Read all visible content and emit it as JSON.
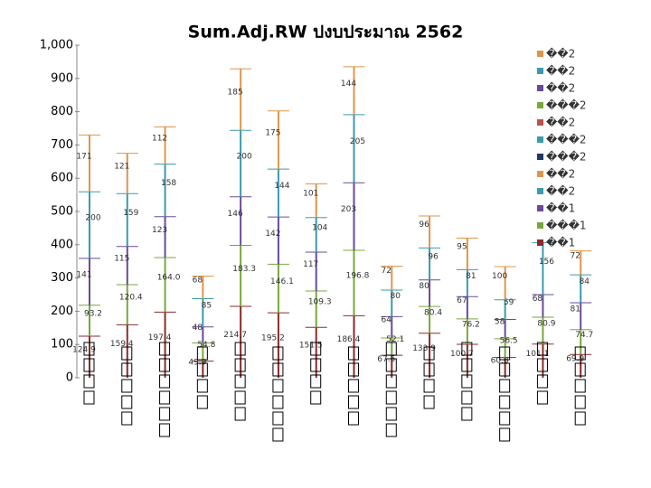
{
  "chart_data": {
    "type": "stacked-lines",
    "title": "Sum.Adj.RW ปงบประมาณ 2562",
    "categories": [
      null,
      null,
      null,
      null,
      null,
      null,
      null,
      null,
      null,
      null,
      null,
      null,
      null,
      null
    ],
    "ylim": [
      0,
      1000
    ],
    "yticks": [
      0,
      100,
      200,
      300,
      400,
      500,
      600,
      700,
      800,
      900,
      {
        "value": 1000,
        "label": "1,000"
      }
    ],
    "series": [
      {
        "color": "#8b2a2a",
        "values": [
          124.9,
          159.4,
          197.4,
          49.9,
          214.7,
          195.2,
          151.5,
          186.4,
          67.5,
          133.9,
          100.7,
          60.8,
          101.1,
          69.9
        ]
      },
      {
        "color": "#77a83a",
        "values": [
          93.2,
          120.4,
          164.0,
          54.8,
          183.3,
          146.1,
          109.3,
          196.8,
          52.1,
          80.4,
          76.2,
          56.5,
          80.9,
          74.7
        ],
        "value_labels": [
          "93.2",
          "120.4",
          "164.0",
          "54.8",
          "183.3",
          "146.1",
          "109.3",
          "196.8",
          "52.1",
          "80.4",
          "76.2",
          "56.5",
          "80.9",
          "74.7"
        ]
      },
      {
        "color": "#6a4a9a",
        "values": [
          141,
          115,
          123,
          48,
          146,
          142,
          117,
          203,
          64,
          80,
          67,
          58,
          68,
          81
        ]
      },
      {
        "color": "#3a9ab0",
        "values": [
          200,
          159,
          158,
          85,
          200,
          144,
          104,
          205,
          80,
          96,
          81,
          59,
          156,
          84
        ]
      },
      {
        "color": "#e0954a",
        "values": [
          171,
          121,
          112,
          68,
          185,
          175,
          101,
          144,
          72,
          96,
          95,
          100,
          null,
          72
        ]
      }
    ],
    "legend": [
      {
        "label": "��2",
        "color": "#e0954a"
      },
      {
        "label": "��2",
        "color": "#3a9ab0"
      },
      {
        "label": "��2",
        "color": "#6a4a9a"
      },
      {
        "label": "���2",
        "color": "#77a83a"
      },
      {
        "label": "��2",
        "color": "#c0504d"
      },
      {
        "label": "���2",
        "color": "#3a9ab0"
      },
      {
        "label": "���2",
        "color": "#1f3864"
      },
      {
        "label": "��2",
        "color": "#e0954a"
      },
      {
        "label": "��2",
        "color": "#3a9ab0"
      },
      {
        "label": "��1",
        "color": "#6a4a9a"
      },
      {
        "label": "���1",
        "color": "#77a83a"
      },
      {
        "label": "��1",
        "color": "#8b2a2a"
      }
    ]
  }
}
